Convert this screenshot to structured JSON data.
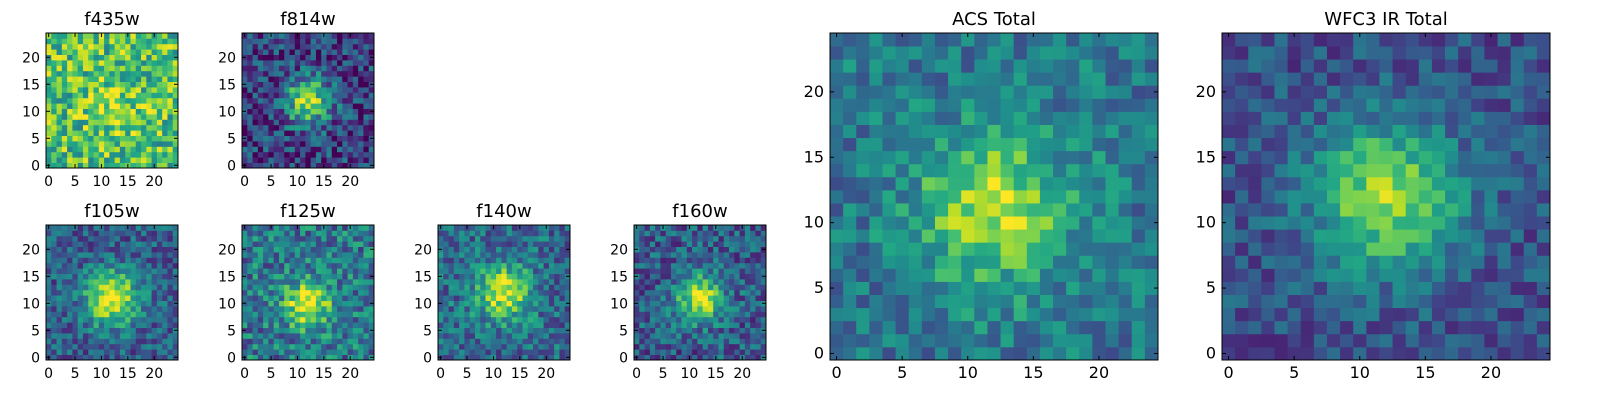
{
  "chart_data": [
    {
      "type": "heatmap",
      "title": "f435w",
      "xticks": [
        "0",
        "5",
        "10",
        "15",
        "20"
      ],
      "yticks": [
        "0",
        "5",
        "10",
        "15",
        "20"
      ],
      "xlim": [
        0,
        24
      ],
      "ylim": [
        0,
        24
      ],
      "colormap": "viridis",
      "peak": [
        12,
        11
      ],
      "sigma": 3.5,
      "amplitude": 0.15,
      "base": 0.7,
      "noise": 0.28,
      "seed": 11
    },
    {
      "type": "heatmap",
      "title": "f814w",
      "xticks": [
        "0",
        "5",
        "10",
        "15",
        "20"
      ],
      "yticks": [
        "0",
        "5",
        "10",
        "15",
        "20"
      ],
      "xlim": [
        0,
        24
      ],
      "ylim": [
        0,
        24
      ],
      "colormap": "viridis",
      "peak": [
        12,
        12
      ],
      "sigma": 3.0,
      "amplitude": 0.7,
      "base": 0.2,
      "noise": 0.25,
      "seed": 23
    },
    {
      "type": "heatmap",
      "title": "f105w",
      "xticks": [
        "0",
        "5",
        "10",
        "15",
        "20"
      ],
      "yticks": [
        "0",
        "5",
        "10",
        "15",
        "20"
      ],
      "xlim": [
        0,
        24
      ],
      "ylim": [
        0,
        24
      ],
      "colormap": "viridis",
      "peak": [
        12,
        11
      ],
      "sigma": 3.5,
      "amplitude": 0.7,
      "base": 0.3,
      "noise": 0.2,
      "seed": 37
    },
    {
      "type": "heatmap",
      "title": "f125w",
      "xticks": [
        "0",
        "5",
        "10",
        "15",
        "20"
      ],
      "yticks": [
        "0",
        "5",
        "10",
        "15",
        "20"
      ],
      "xlim": [
        0,
        24
      ],
      "ylim": [
        0,
        24
      ],
      "colormap": "viridis",
      "peak": [
        12,
        10
      ],
      "sigma": 3.0,
      "amplitude": 0.6,
      "base": 0.4,
      "noise": 0.25,
      "seed": 41
    },
    {
      "type": "heatmap",
      "title": "f140w",
      "xticks": [
        "0",
        "5",
        "10",
        "15",
        "20"
      ],
      "yticks": [
        "0",
        "5",
        "10",
        "15",
        "20"
      ],
      "xlim": [
        0,
        24
      ],
      "ylim": [
        0,
        24
      ],
      "colormap": "viridis",
      "peak": [
        12,
        12
      ],
      "sigma": 3.5,
      "amplitude": 0.6,
      "base": 0.35,
      "noise": 0.22,
      "seed": 53
    },
    {
      "type": "heatmap",
      "title": "f160w",
      "xticks": [
        "0",
        "5",
        "10",
        "15",
        "20"
      ],
      "yticks": [
        "0",
        "5",
        "10",
        "15",
        "20"
      ],
      "xlim": [
        0,
        24
      ],
      "ylim": [
        0,
        24
      ],
      "colormap": "viridis",
      "peak": [
        12,
        11
      ],
      "sigma": 3.0,
      "amplitude": 0.65,
      "base": 0.3,
      "noise": 0.22,
      "seed": 67
    },
    {
      "type": "heatmap",
      "title": "ACS Total",
      "xticks": [
        "0",
        "5",
        "10",
        "15",
        "20"
      ],
      "yticks": [
        "0",
        "5",
        "10",
        "15",
        "20"
      ],
      "xlim": [
        0,
        24
      ],
      "ylim": [
        0,
        24
      ],
      "colormap": "viridis",
      "peak": [
        12,
        11
      ],
      "sigma": 4.0,
      "amplitude": 0.5,
      "base": 0.4,
      "noise": 0.18,
      "seed": 79
    },
    {
      "type": "heatmap",
      "title": "WFC3 IR Total",
      "xticks": [
        "0",
        "5",
        "10",
        "15",
        "20"
      ],
      "yticks": [
        "0",
        "5",
        "10",
        "15",
        "20"
      ],
      "xlim": [
        0,
        24
      ],
      "ylim": [
        0,
        24
      ],
      "colormap": "viridis",
      "peak": [
        12,
        12
      ],
      "sigma": 4.0,
      "amplitude": 0.6,
      "base": 0.25,
      "noise": 0.15,
      "seed": 97
    }
  ]
}
